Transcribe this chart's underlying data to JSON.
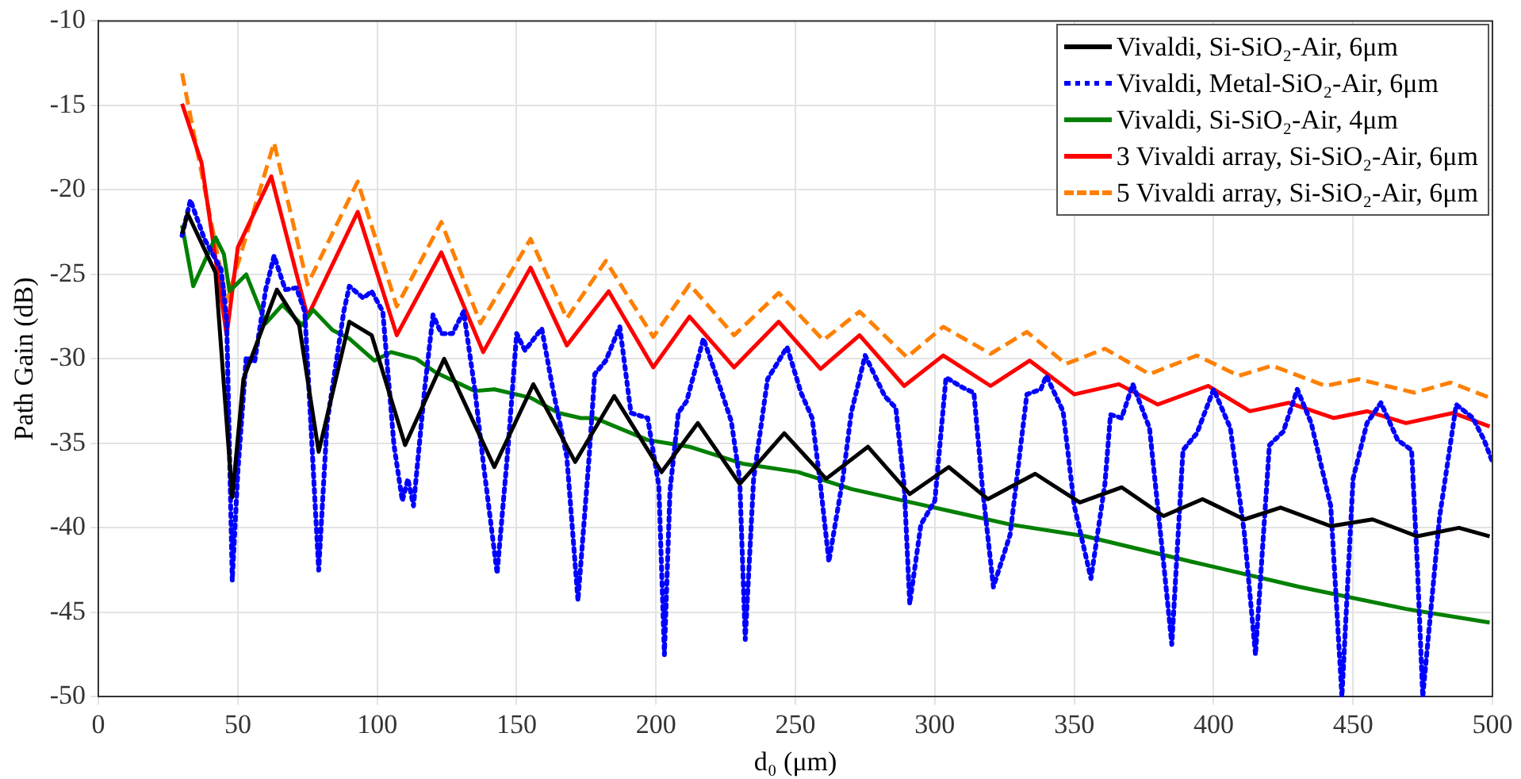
{
  "chart_data": {
    "type": "line",
    "xlabel": "d₀ (μm)",
    "ylabel": "Path Gain (dB)",
    "xlim": [
      0,
      500
    ],
    "ylim": [
      -50,
      -10
    ],
    "xticks": [
      0,
      50,
      100,
      150,
      200,
      250,
      300,
      350,
      400,
      450,
      500
    ],
    "yticks": [
      -50,
      -45,
      -40,
      -35,
      -30,
      -25,
      -20,
      -15,
      -10
    ],
    "grid": true,
    "legend": "top right",
    "marker": "none",
    "series": [
      {
        "name": "Vivaldi, Si-SiO₂-Air, 6μm",
        "color": "#000000",
        "line_style": "solid",
        "x": [
          30,
          32,
          42,
          48,
          52,
          64,
          72,
          79,
          90,
          98,
          110,
          124,
          142,
          156,
          171,
          185,
          202,
          215,
          230,
          246,
          261,
          276,
          291,
          305,
          319,
          336,
          352,
          367,
          382,
          396,
          411,
          424,
          442,
          457,
          473,
          488,
          499
        ],
        "values": [
          -22.6,
          -21.4,
          -24.9,
          -38.2,
          -31.2,
          -25.9,
          -28,
          -35.5,
          -27.8,
          -28.6,
          -35.1,
          -30,
          -36.4,
          -31.5,
          -36.1,
          -32.2,
          -36.7,
          -33.8,
          -37.4,
          -34.4,
          -37.1,
          -35.2,
          -38,
          -36.4,
          -38.3,
          -36.8,
          -38.5,
          -37.6,
          -39.3,
          -38.3,
          -39.5,
          -38.8,
          -39.9,
          -39.5,
          -40.5,
          -40,
          -40.5
        ]
      },
      {
        "name": "Vivaldi, Metal-SiO₂-Air, 6μm",
        "color": "#0000ff",
        "line_style": "dotted",
        "x": [
          30,
          33,
          38,
          44,
          46,
          48,
          50,
          53,
          56,
          60,
          63,
          67,
          71,
          74,
          79,
          82,
          88,
          90,
          95,
          98,
          102,
          106,
          109,
          111,
          113,
          117,
          120,
          123,
          127,
          131,
          135,
          138,
          143,
          147,
          150,
          153,
          159,
          163,
          168,
          172,
          176,
          178,
          182,
          187,
          191,
          197,
          201,
          203,
          205,
          208,
          211,
          217,
          222,
          227,
          230,
          232,
          235,
          240,
          247,
          252,
          256,
          259,
          262,
          267,
          270,
          275,
          282,
          286,
          289,
          291,
          295,
          300,
          304,
          310,
          314,
          317,
          321,
          327,
          333,
          338,
          340,
          346,
          350,
          356,
          361,
          363,
          367,
          371,
          377,
          382,
          385,
          389,
          394,
          400,
          406,
          411,
          415,
          420,
          425,
          430,
          435,
          442,
          446,
          450,
          455,
          460,
          466,
          471,
          473,
          475,
          481,
          487,
          493,
          497,
          500
        ],
        "values": [
          -22.7,
          -20.6,
          -22.9,
          -24.7,
          -27.7,
          -43.1,
          -36.7,
          -29.9,
          -30.2,
          -25.9,
          -23.9,
          -25.9,
          -25.8,
          -27.2,
          -42.5,
          -33.8,
          -27.2,
          -25.7,
          -26.4,
          -26,
          -27.2,
          -35.1,
          -38.4,
          -37.1,
          -38.7,
          -31.8,
          -27.4,
          -28.5,
          -28.5,
          -27.2,
          -31.8,
          -36.1,
          -42.7,
          -35.1,
          -28.5,
          -29.5,
          -28.2,
          -31.8,
          -35.8,
          -44.3,
          -35.8,
          -30.9,
          -30.1,
          -28.1,
          -33.2,
          -33.5,
          -37.5,
          -47.5,
          -37.8,
          -33.2,
          -32.5,
          -28.8,
          -31.2,
          -33.7,
          -37.1,
          -46.6,
          -37.1,
          -31.2,
          -29.3,
          -32,
          -33.5,
          -37.5,
          -42,
          -37.1,
          -33.2,
          -29.8,
          -32.2,
          -32.9,
          -37.5,
          -44.5,
          -39.8,
          -38.4,
          -31.1,
          -31.7,
          -32,
          -37.5,
          -43.5,
          -40.4,
          -32.1,
          -31.8,
          -31,
          -33.1,
          -38.7,
          -43,
          -37.4,
          -33.3,
          -33.5,
          -31.5,
          -34.1,
          -42,
          -46.9,
          -35.4,
          -34.4,
          -31.8,
          -34.1,
          -40.3,
          -47.5,
          -35.1,
          -34.3,
          -31.8,
          -33.8,
          -38.7,
          -50,
          -37.1,
          -33.8,
          -32.6,
          -34.8,
          -35.4,
          -42,
          -50,
          -39.4,
          -32.7,
          -33.5,
          -34.8,
          -36.1
        ]
      },
      {
        "name": "Vivaldi, Si-SiO₂-Air, 4μm",
        "color": "#008000",
        "line_style": "solid",
        "x": [
          30,
          34,
          42,
          45,
          47,
          53,
          60,
          66,
          73,
          77,
          84,
          90,
          99,
          105,
          114,
          121,
          135,
          142,
          155,
          165,
          173,
          178,
          197,
          212,
          231,
          251,
          270,
          289,
          308,
          327,
          354,
          392,
          431,
          469,
          499
        ],
        "values": [
          -22.1,
          -25.7,
          -22.8,
          -23.8,
          -26,
          -25,
          -27.9,
          -26.8,
          -28,
          -27.1,
          -28.3,
          -28.8,
          -30.1,
          -29.6,
          -30,
          -30.8,
          -31.9,
          -31.8,
          -32.3,
          -33.2,
          -33.5,
          -33.5,
          -34.8,
          -35.2,
          -36.2,
          -36.7,
          -37.7,
          -38.4,
          -39.1,
          -39.8,
          -40.5,
          -42,
          -43.5,
          -44.8,
          -45.6
        ]
      },
      {
        "name": "3 Vivaldi array, Si-SiO₂-Air, 6μm",
        "color": "#ff0000",
        "line_style": "solid",
        "x": [
          30,
          37,
          46,
          50,
          62,
          75,
          93,
          107,
          123,
          138,
          155,
          168,
          183,
          199,
          212,
          228,
          244,
          259,
          273,
          289,
          303,
          320,
          334,
          350,
          366,
          380,
          398,
          413,
          427,
          443,
          455,
          469,
          486,
          499
        ],
        "values": [
          -14.9,
          -18.4,
          -28.6,
          -23.4,
          -19.2,
          -27.5,
          -21.3,
          -28.6,
          -23.7,
          -29.6,
          -24.6,
          -29.2,
          -26,
          -30.5,
          -27.5,
          -30.5,
          -27.8,
          -30.6,
          -28.6,
          -31.6,
          -29.8,
          -31.6,
          -30.1,
          -32.1,
          -31.5,
          -32.7,
          -31.6,
          -33.1,
          -32.6,
          -33.5,
          -33.1,
          -33.8,
          -33.2,
          -34
        ]
      },
      {
        "name": "5 Vivaldi array, Si-SiO₂-Air, 6μm",
        "color": "#ff8000",
        "line_style": "dashed",
        "x": [
          30,
          46,
          63,
          75,
          93,
          107,
          123,
          137,
          155,
          168,
          182,
          199,
          212,
          228,
          244,
          260,
          273,
          290,
          303,
          320,
          333,
          347,
          361,
          377,
          394,
          409,
          421,
          440,
          452,
          472,
          485,
          499
        ],
        "values": [
          -13.1,
          -26.6,
          -17.2,
          -25.6,
          -19.5,
          -26.9,
          -21.9,
          -27.9,
          -22.9,
          -27.6,
          -24.2,
          -28.7,
          -25.6,
          -28.6,
          -26.1,
          -28.9,
          -27.2,
          -29.9,
          -28.1,
          -29.7,
          -28.4,
          -30.3,
          -29.4,
          -30.9,
          -29.8,
          -31,
          -30.4,
          -31.6,
          -31.2,
          -32,
          -31.4,
          -32.3
        ]
      }
    ]
  }
}
